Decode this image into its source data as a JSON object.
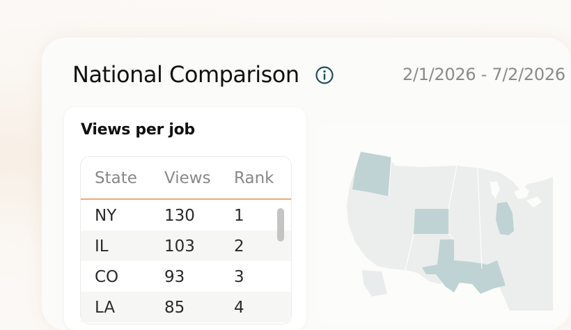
{
  "header": {
    "title": "National Comparison",
    "date_range": "2/1/2026 - 7/2/2026"
  },
  "views_panel": {
    "title": "Views per job",
    "columns": [
      "State",
      "Views",
      "Rank"
    ],
    "rows": [
      {
        "state": "NY",
        "views": "130",
        "rank": "1"
      },
      {
        "state": "IL",
        "views": "103",
        "rank": "2"
      },
      {
        "state": "CO",
        "views": "93",
        "rank": "3"
      },
      {
        "state": "LA",
        "views": "85",
        "rank": "4"
      }
    ]
  },
  "map": {
    "highlighted_states": [
      "WA",
      "CO",
      "IL",
      "TX"
    ],
    "highlight_color": "#bfd3d4",
    "base_color": "#eceeed"
  },
  "colors": {
    "accent": "#f0a677",
    "icon": "#1f4e5a"
  }
}
